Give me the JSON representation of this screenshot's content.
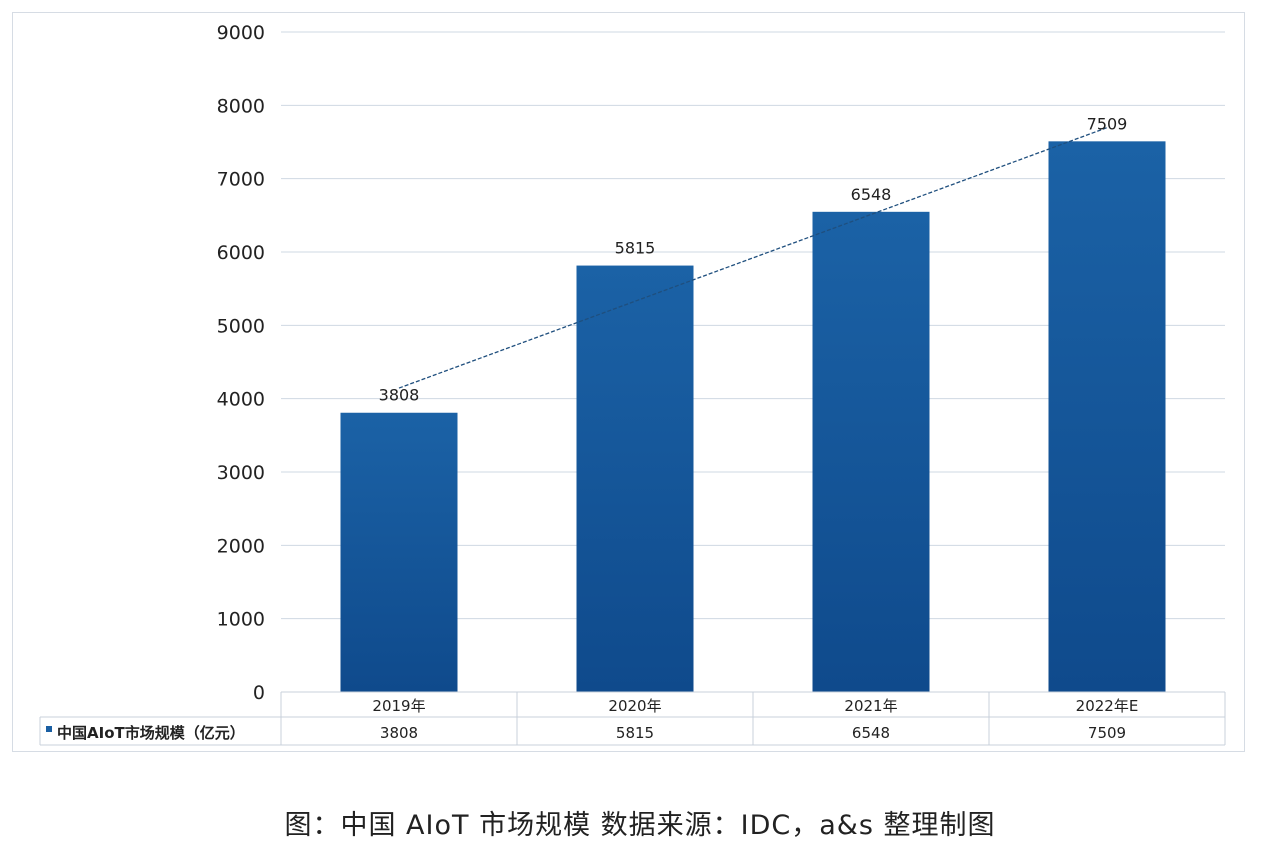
{
  "chart_data": {
    "type": "bar",
    "title": "",
    "categories": [
      "2019年",
      "2020年",
      "2021年",
      "2022年E"
    ],
    "series": [
      {
        "name": "中国AIoT市场规模（亿元）",
        "values": [
          3808,
          5815,
          6548,
          7509
        ],
        "color": "#1a5fa3"
      }
    ],
    "data_labels": [
      "3808",
      "5815",
      "6548",
      "7509"
    ],
    "trendline": {
      "type": "linear",
      "style": "dashed"
    },
    "ylim": [
      0,
      9000
    ],
    "yticks": [
      0,
      1000,
      2000,
      3000,
      4000,
      5000,
      6000,
      7000,
      8000,
      9000
    ],
    "grid": true,
    "data_table": true,
    "xlabel": "",
    "ylabel": ""
  },
  "caption": "图：中国 AIoT 市场规模 数据来源：IDC，a&s 整理制图"
}
